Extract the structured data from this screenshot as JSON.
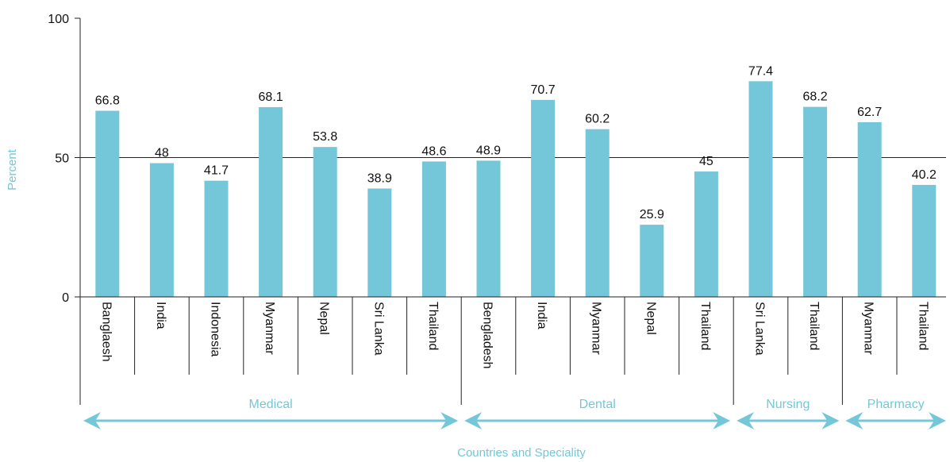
{
  "chart_data": {
    "type": "bar",
    "ylabel": "Percent",
    "xlabel": "Countries and Speciality",
    "ylim": [
      0,
      100
    ],
    "yticks": [
      "0",
      "50",
      "100"
    ],
    "grid": "horizontal line at 50",
    "bar_color": "#74c7d8",
    "accent_color": "#74c7d8",
    "categories": [
      "Banglaesh",
      "India",
      "Indonesia",
      "Myanmar",
      "Nepal",
      "Sri Lanka",
      "Thailand",
      "Bengladesh",
      "India",
      "Myanmar",
      "Nepal",
      "Thailand",
      "Sri Lanka",
      "Thailand",
      "Myanmar",
      "Thailand"
    ],
    "values": [
      66.8,
      48,
      41.7,
      68.1,
      53.8,
      38.9,
      48.6,
      48.9,
      70.7,
      60.2,
      25.9,
      45,
      77.4,
      68.2,
      62.7,
      40.2
    ],
    "value_labels": [
      "66.8",
      "48",
      "41.7",
      "68.1",
      "53.8",
      "38.9",
      "48.6",
      "48.9",
      "70.7",
      "60.2",
      "25.9",
      "45",
      "77.4",
      "68.2",
      "62.7",
      "40.2"
    ],
    "groups": [
      {
        "name": "Medical",
        "count": 7
      },
      {
        "name": "Dental",
        "count": 5
      },
      {
        "name": "Nursing",
        "count": 2
      },
      {
        "name": "Pharmacy",
        "count": 2
      }
    ]
  }
}
